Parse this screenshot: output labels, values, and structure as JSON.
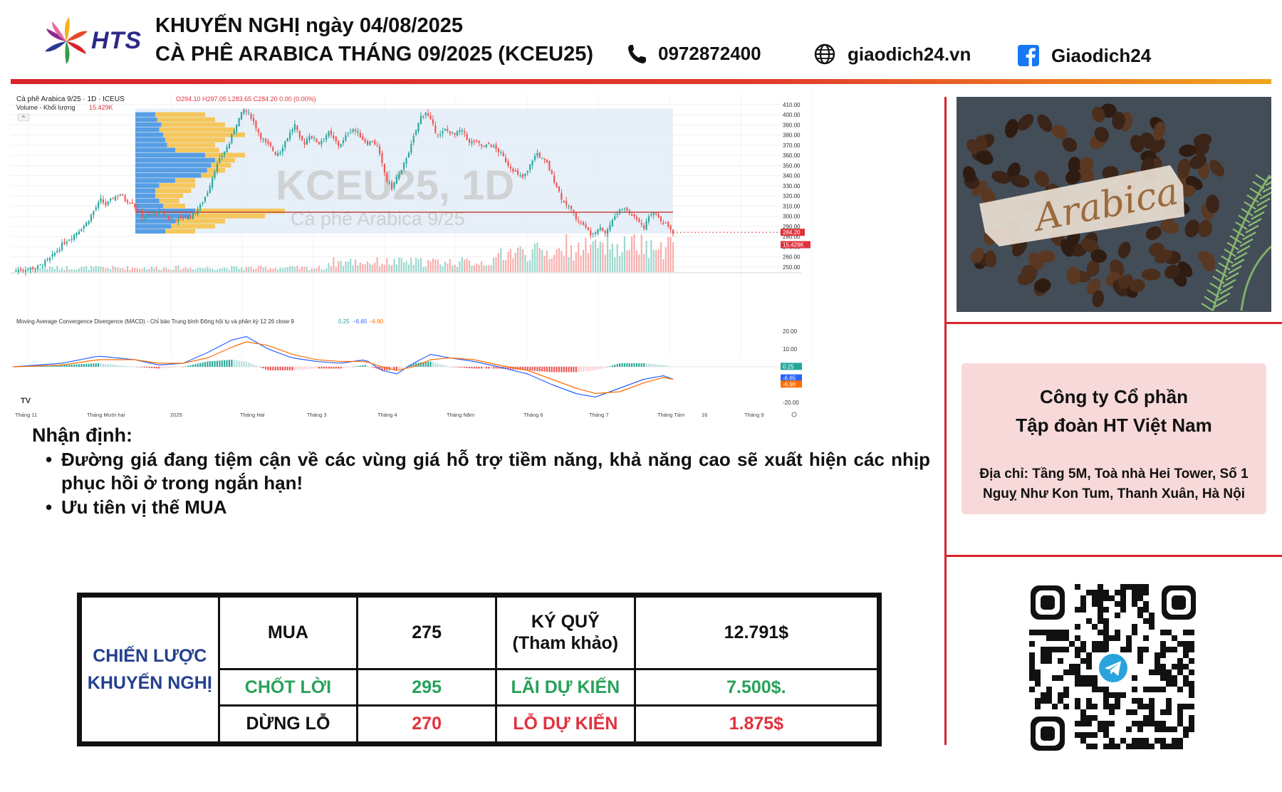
{
  "header": {
    "brand": "HTS",
    "title_line1": "KHUYẾN NGHỊ ngày 04/08/2025",
    "title_line2": "CÀ PHÊ ARABICA THÁNG 09/2025 (KCEU25)",
    "phone": "0972872400",
    "website": "giaodich24.vn",
    "facebook": "Giaodich24",
    "icons": [
      "phone-icon",
      "globe-icon",
      "facebook-icon"
    ],
    "colors": {
      "accent_red": "#d9232d",
      "accent_orange": "#f1a51f",
      "brand_navy": "#2c2a86"
    }
  },
  "chart_data": {
    "type": "candlestick",
    "symbol_line": "Cà phê Arabica 9/25 · 1D · ICEUS",
    "ohlc_text": "O294.10 H297.05 L283.65 C284.20 0.00 (0.00%)",
    "volume_label": "Volume - Khối lượng",
    "volume_value": "15.429K",
    "watermark_title": "KCEU25, 1D",
    "watermark_subtitle": "Cà phê Arabica 9/25",
    "y_ticks": [
      "410.00",
      "400.00",
      "390.00",
      "380.00",
      "370.00",
      "360.00",
      "350.00",
      "340.00",
      "330.00",
      "320.00",
      "310.00",
      "300.00",
      "290.00",
      "280.00",
      "270.00",
      "260.00",
      "250.00"
    ],
    "ylim": [
      245,
      412
    ],
    "last_price_label": "284.20",
    "volume_badge": "15.429K",
    "x_ticks": [
      "Tháng 11",
      "Tháng Mười hai",
      "2025",
      "Tháng Hai",
      "Tháng 3",
      "Tháng 4",
      "Tháng Năm",
      "Tháng 6",
      "Tháng 7",
      "Tháng Tám",
      "16",
      "Tháng 9"
    ],
    "close_path": [
      [
        0,
        246
      ],
      [
        5,
        248
      ],
      [
        10,
        250
      ],
      [
        15,
        258
      ],
      [
        20,
        272
      ],
      [
        25,
        282
      ],
      [
        30,
        293
      ],
      [
        33,
        305
      ],
      [
        36,
        316
      ],
      [
        38,
        311
      ],
      [
        41,
        318
      ],
      [
        44,
        322
      ],
      [
        46,
        316
      ],
      [
        49,
        314
      ],
      [
        51,
        306
      ],
      [
        53,
        300
      ],
      [
        56,
        300
      ],
      [
        59,
        304
      ],
      [
        62,
        302
      ],
      [
        65,
        296
      ],
      [
        68,
        298
      ],
      [
        71,
        299
      ],
      [
        74,
        301
      ],
      [
        77,
        310
      ],
      [
        80,
        324
      ],
      [
        83,
        346
      ],
      [
        86,
        360
      ],
      [
        89,
        372
      ],
      [
        92,
        392
      ],
      [
        95,
        405
      ],
      [
        98,
        398
      ],
      [
        100,
        388
      ],
      [
        102,
        378
      ],
      [
        104,
        372
      ],
      [
        106,
        368
      ],
      [
        108,
        362
      ],
      [
        110,
        364
      ],
      [
        112,
        374
      ],
      [
        114,
        382
      ],
      [
        116,
        390
      ],
      [
        118,
        376
      ],
      [
        120,
        372
      ],
      [
        122,
        380
      ],
      [
        124,
        376
      ],
      [
        126,
        372
      ],
      [
        128,
        378
      ],
      [
        130,
        382
      ],
      [
        132,
        376
      ],
      [
        134,
        370
      ],
      [
        136,
        374
      ],
      [
        138,
        383
      ],
      [
        140,
        386
      ],
      [
        142,
        382
      ],
      [
        144,
        376
      ],
      [
        146,
        372
      ],
      [
        148,
        374
      ],
      [
        150,
        369
      ],
      [
        152,
        351
      ],
      [
        154,
        335
      ],
      [
        156,
        328
      ],
      [
        158,
        338
      ],
      [
        160,
        344
      ],
      [
        162,
        358
      ],
      [
        164,
        370
      ],
      [
        166,
        385
      ],
      [
        168,
        398
      ],
      [
        170,
        403
      ],
      [
        172,
        394
      ],
      [
        174,
        384
      ],
      [
        176,
        380
      ],
      [
        178,
        385
      ],
      [
        180,
        383
      ],
      [
        182,
        380
      ],
      [
        184,
        384
      ],
      [
        186,
        382
      ],
      [
        188,
        372
      ],
      [
        190,
        374
      ],
      [
        192,
        371
      ],
      [
        194,
        368
      ],
      [
        196,
        371
      ],
      [
        198,
        368
      ],
      [
        200,
        364
      ],
      [
        202,
        358
      ],
      [
        204,
        351
      ],
      [
        206,
        346
      ],
      [
        208,
        340
      ],
      [
        210,
        338
      ],
      [
        212,
        344
      ],
      [
        214,
        356
      ],
      [
        216,
        362
      ],
      [
        218,
        356
      ],
      [
        220,
        352
      ],
      [
        222,
        340
      ],
      [
        224,
        330
      ],
      [
        226,
        318
      ],
      [
        228,
        312
      ],
      [
        230,
        306
      ],
      [
        232,
        298
      ],
      [
        234,
        294
      ],
      [
        236,
        288
      ],
      [
        238,
        283
      ],
      [
        240,
        286
      ],
      [
        242,
        290
      ],
      [
        244,
        283
      ],
      [
        246,
        292
      ],
      [
        248,
        300
      ],
      [
        250,
        306
      ],
      [
        252,
        308
      ],
      [
        254,
        303
      ],
      [
        256,
        300
      ],
      [
        258,
        296
      ],
      [
        260,
        290
      ],
      [
        262,
        298
      ],
      [
        264,
        304
      ],
      [
        266,
        300
      ],
      [
        268,
        294
      ],
      [
        270,
        290
      ],
      [
        272,
        284
      ]
    ],
    "volume_profile_rows": [
      [
        400,
        0.1,
        0.35
      ],
      [
        395,
        0.11,
        0.4
      ],
      [
        390,
        0.13,
        0.45
      ],
      [
        385,
        0.12,
        0.5
      ],
      [
        380,
        0.14,
        0.55
      ],
      [
        375,
        0.15,
        0.45
      ],
      [
        370,
        0.16,
        0.4
      ],
      [
        365,
        0.2,
        0.42
      ],
      [
        360,
        0.35,
        0.55
      ],
      [
        355,
        0.4,
        0.5
      ],
      [
        350,
        0.38,
        0.48
      ],
      [
        345,
        0.36,
        0.45
      ],
      [
        340,
        0.33,
        0.4
      ],
      [
        335,
        0.2,
        0.3
      ],
      [
        330,
        0.12,
        0.3
      ],
      [
        325,
        0.1,
        0.28
      ],
      [
        320,
        0.1,
        0.24
      ],
      [
        315,
        0.12,
        0.22
      ],
      [
        310,
        0.14,
        0.25
      ],
      [
        305,
        0.3,
        0.75
      ],
      [
        300,
        0.28,
        0.65
      ],
      [
        295,
        0.2,
        0.45
      ],
      [
        290,
        0.18,
        0.4
      ],
      [
        285,
        0.15,
        0.3
      ]
    ],
    "macd": {
      "label": "Moving Average Convergence Divergence (MACD) - Chỉ báo Trung bình Động hội tụ và phân kỳ 12 26 close 9",
      "values_text": [
        "0.25",
        "−6.65",
        "−6.90"
      ],
      "y_ticks": [
        "20.00",
        "10.00",
        "0.00",
        "-10.00",
        "-20.00"
      ],
      "ylim": [
        -22,
        22
      ],
      "badges": [
        "0.25",
        "-6.65",
        "-6.90"
      ],
      "macd_line": [
        [
          0,
          0
        ],
        [
          20,
          2
        ],
        [
          35,
          6
        ],
        [
          50,
          4
        ],
        [
          60,
          1
        ],
        [
          70,
          2
        ],
        [
          80,
          8
        ],
        [
          90,
          15
        ],
        [
          96,
          17
        ],
        [
          105,
          10
        ],
        [
          115,
          5
        ],
        [
          125,
          3
        ],
        [
          135,
          2
        ],
        [
          145,
          4
        ],
        [
          152,
          -2
        ],
        [
          158,
          -4
        ],
        [
          165,
          2
        ],
        [
          172,
          7
        ],
        [
          180,
          5
        ],
        [
          190,
          3
        ],
        [
          200,
          0
        ],
        [
          212,
          -4
        ],
        [
          222,
          -10
        ],
        [
          232,
          -15
        ],
        [
          240,
          -17
        ],
        [
          250,
          -12
        ],
        [
          260,
          -7
        ],
        [
          268,
          -5
        ],
        [
          272,
          -7
        ]
      ],
      "signal_line": [
        [
          0,
          0
        ],
        [
          20,
          1
        ],
        [
          35,
          4
        ],
        [
          50,
          4
        ],
        [
          60,
          2
        ],
        [
          70,
          2
        ],
        [
          80,
          5
        ],
        [
          90,
          11
        ],
        [
          96,
          14
        ],
        [
          105,
          12
        ],
        [
          115,
          7
        ],
        [
          125,
          4
        ],
        [
          135,
          3
        ],
        [
          145,
          3
        ],
        [
          152,
          0
        ],
        [
          158,
          -2
        ],
        [
          165,
          0
        ],
        [
          172,
          4
        ],
        [
          180,
          5
        ],
        [
          190,
          4
        ],
        [
          200,
          1
        ],
        [
          212,
          -2
        ],
        [
          222,
          -7
        ],
        [
          232,
          -12
        ],
        [
          240,
          -15
        ],
        [
          250,
          -14
        ],
        [
          260,
          -9
        ],
        [
          268,
          -6
        ],
        [
          272,
          -7
        ]
      ]
    },
    "grid": true
  },
  "analysis": {
    "title": "Nhận định:",
    "bullets": [
      "Đường giá đang tiệm cận về các vùng giá hỗ trợ tiềm năng, khả năng cao sẽ xuất hiện các nhịp phục hồi ở trong ngắn hạn!",
      "Ưu tiên vị thế MUA"
    ]
  },
  "strategy": {
    "label_line1": "CHIẾN LƯỢC",
    "label_line2": "KHUYẾN NGHỊ",
    "rows": [
      {
        "action": "MUA",
        "price": "275",
        "metric": "KÝ QUỸ",
        "metric_sub": "(Tham khảo)",
        "amount": "12.791$"
      },
      {
        "action": "CHỐT LỜI",
        "price": "295",
        "metric": "LÃI DỰ KIẾN",
        "metric_sub": "",
        "amount": "7.500$."
      },
      {
        "action": "DỪNG LỖ",
        "price": "270",
        "metric": "LỖ DỰ KIẾN",
        "metric_sub": "",
        "amount": "1.875$"
      }
    ]
  },
  "sidebar": {
    "image_text": "Arabica",
    "company_line1": "Công ty Cổ phần",
    "company_line2": "Tập đoàn HT Việt Nam",
    "address_line1": "Địa chỉ: Tầng 5M, Toà nhà Hei Tower, Số 1",
    "address_line2": "Nguỵ Như Kon Tum, Thanh Xuân, Hà Nội"
  }
}
